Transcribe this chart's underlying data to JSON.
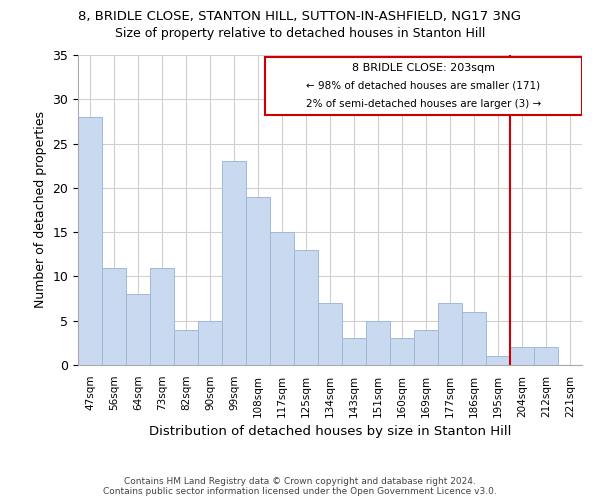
{
  "title1": "8, BRIDLE CLOSE, STANTON HILL, SUTTON-IN-ASHFIELD, NG17 3NG",
  "title2": "Size of property relative to detached houses in Stanton Hill",
  "xlabel": "Distribution of detached houses by size in Stanton Hill",
  "ylabel": "Number of detached properties",
  "categories": [
    "47sqm",
    "56sqm",
    "64sqm",
    "73sqm",
    "82sqm",
    "90sqm",
    "99sqm",
    "108sqm",
    "117sqm",
    "125sqm",
    "134sqm",
    "143sqm",
    "151sqm",
    "160sqm",
    "169sqm",
    "177sqm",
    "186sqm",
    "195sqm",
    "204sqm",
    "212sqm",
    "221sqm"
  ],
  "values": [
    28,
    11,
    8,
    11,
    4,
    5,
    23,
    19,
    15,
    13,
    7,
    3,
    5,
    3,
    4,
    7,
    6,
    1,
    2,
    2,
    0
  ],
  "bar_color": "#c9d9f0",
  "bar_edge_color": "#a0b8d8",
  "ylim": [
    0,
    35
  ],
  "yticks": [
    0,
    5,
    10,
    15,
    20,
    25,
    30,
    35
  ],
  "red_line_color": "#cc0000",
  "annotation_line1": "8 BRIDLE CLOSE: 203sqm",
  "annotation_line2": "← 98% of detached houses are smaller (171)",
  "annotation_line3": "2% of semi-detached houses are larger (3) →",
  "footer1": "Contains HM Land Registry data © Crown copyright and database right 2024.",
  "footer2": "Contains public sector information licensed under the Open Government Licence v3.0.",
  "background_color": "#ffffff",
  "grid_color": "#d0d0d0"
}
